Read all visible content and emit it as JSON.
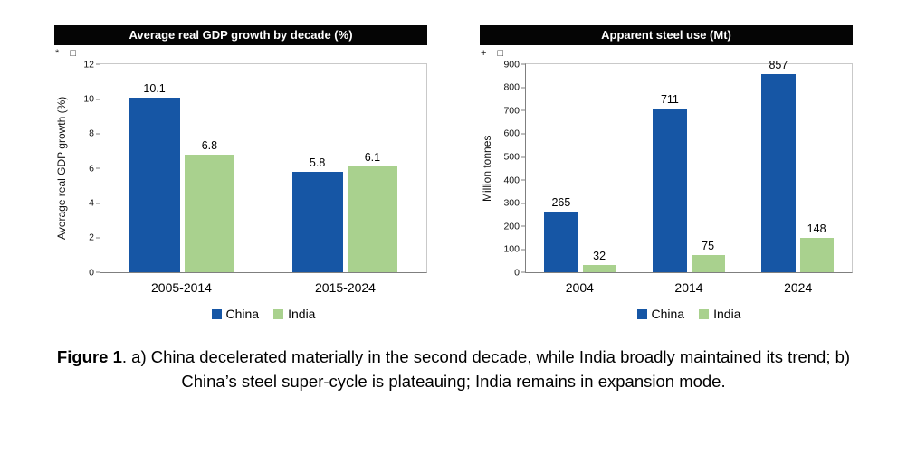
{
  "figure": {
    "caption_label": "Figure 1",
    "caption_text": ". a) China decelerated materially in the second decade, while India broadly maintained its trend; b) China’s steel super-cycle is plateauing; India remains in expansion mode."
  },
  "chart_data": [
    {
      "type": "bar",
      "title": "Average real GDP growth by decade (%)",
      "corner_marks": "* □",
      "ylabel": "Average real GDP growth (%)",
      "categories": [
        "2005-2014",
        "2015-2024"
      ],
      "series": [
        {
          "name": "China",
          "color": "#1656A5",
          "values": [
            10.1,
            5.8
          ]
        },
        {
          "name": "India",
          "color": "#A9D18E",
          "values": [
            6.8,
            6.1
          ]
        }
      ],
      "ylim": [
        0,
        12
      ],
      "yticks": [
        0,
        2,
        4,
        6,
        8,
        10,
        12
      ],
      "legend": [
        "China",
        "India"
      ],
      "legend_position": "bottom",
      "grid": false
    },
    {
      "type": "bar",
      "title": "Apparent steel use (Mt)",
      "corner_marks": "+ □",
      "ylabel": "Million tonnes",
      "categories": [
        "2004",
        "2014",
        "2024"
      ],
      "series": [
        {
          "name": "China",
          "color": "#1656A5",
          "values": [
            265,
            711,
            857
          ]
        },
        {
          "name": "India",
          "color": "#A9D18E",
          "values": [
            32,
            75,
            148
          ]
        }
      ],
      "ylim": [
        0,
        900
      ],
      "yticks": [
        0,
        100,
        200,
        300,
        400,
        500,
        600,
        700,
        800,
        900
      ],
      "legend": [
        "China",
        "India"
      ],
      "legend_position": "bottom",
      "grid": false
    }
  ]
}
